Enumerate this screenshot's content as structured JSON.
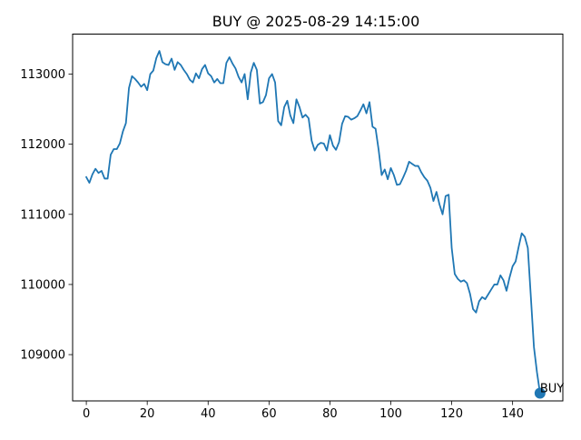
{
  "chart_data": {
    "type": "line",
    "title": "BUY @ 2025-08-29 14:15:00",
    "xlabel": "",
    "ylabel": "",
    "xlim": [
      -4.5,
      156.5
    ],
    "ylim": [
      108340,
      113570
    ],
    "grid": false,
    "line_color": "#1f77b4",
    "x_ticks": [
      0,
      20,
      40,
      60,
      80,
      100,
      120,
      140
    ],
    "y_ticks": [
      109000,
      110000,
      111000,
      112000,
      113000
    ],
    "series": [
      {
        "values": [
          111530,
          111450,
          111570,
          111650,
          111590,
          111620,
          111510,
          111510,
          111850,
          111930,
          111930,
          112010,
          112180,
          112300,
          112800,
          112970,
          112930,
          112880,
          112820,
          112860,
          112770,
          113000,
          113050,
          113230,
          113330,
          113170,
          113140,
          113130,
          113220,
          113060,
          113170,
          113130,
          113060,
          113000,
          112920,
          112880,
          113010,
          112940,
          113070,
          113130,
          113010,
          112970,
          112880,
          112930,
          112870,
          112870,
          113160,
          113240,
          113150,
          113080,
          112960,
          112880,
          113000,
          112640,
          113020,
          113160,
          113060,
          112580,
          112600,
          112700,
          112940,
          113000,
          112880,
          112330,
          112270,
          112530,
          112620,
          112410,
          112300,
          112640,
          112530,
          112380,
          112420,
          112370,
          112050,
          111910,
          111990,
          112020,
          112010,
          111910,
          112130,
          111980,
          111920,
          112030,
          112290,
          112400,
          112390,
          112350,
          112370,
          112400,
          112480,
          112570,
          112440,
          112600,
          112250,
          112220,
          111920,
          111560,
          111640,
          111500,
          111660,
          111560,
          111420,
          111430,
          111520,
          111620,
          111750,
          111720,
          111690,
          111690,
          111600,
          111530,
          111480,
          111380,
          111190,
          111320,
          111140,
          111000,
          111260,
          111280,
          110520,
          110150,
          110080,
          110040,
          110060,
          110020,
          109870,
          109650,
          109600,
          109760,
          109820,
          109790,
          109860,
          109930,
          110000,
          110000,
          110130,
          110060,
          109910,
          110100,
          110260,
          110330,
          110540,
          110730,
          110680,
          110520,
          109820,
          109110,
          108750,
          108450
        ]
      }
    ],
    "annotations": [
      {
        "label": "BUY",
        "x": 149,
        "y": 108450
      }
    ]
  }
}
